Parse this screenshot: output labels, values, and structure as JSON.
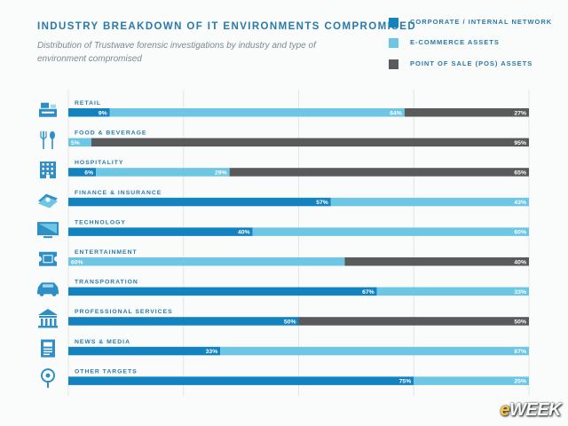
{
  "title": "INDUSTRY BREAKDOWN OF IT ENVIRONMENTS COMPROMISED",
  "subtitle": "Distribution of Trustwave forensic investigations by industry and type of environment compromised",
  "colors": {
    "corporate": "#1383c0",
    "ecommerce": "#6cc6e4",
    "pos": "#585a5c",
    "label": "#2a7aa8",
    "icon": "#2f8fc4",
    "grid": "#e1e6e9"
  },
  "legend": [
    {
      "name": "CORPORATE / INTERNAL NETWORK",
      "color_key": "corporate"
    },
    {
      "name": "E-COMMERCE ASSETS",
      "color_key": "ecommerce"
    },
    {
      "name": "POINT OF SALE (POS) ASSETS",
      "color_key": "pos"
    }
  ],
  "watermark": {
    "lead": "e",
    "rest": "WEEK"
  },
  "chart_data": {
    "type": "bar",
    "stacked": true,
    "orientation": "horizontal",
    "xlim": [
      0,
      100
    ],
    "grid": true,
    "legend_position": "top-right",
    "categories": [
      "RETAIL",
      "FOOD & BEVERAGE",
      "HOSPITALITY",
      "FINANCE & INSURANCE",
      "TECHNOLOGY",
      "ENTERTAINMENT",
      "TRANSPORATION",
      "PROFESSIONAL SERVICES",
      "NEWS & MEDIA",
      "OTHER TARGETS"
    ],
    "icons": [
      "cash-register-icon",
      "fork-spoon-icon",
      "hotel-icon",
      "money-icon",
      "monitor-icon",
      "ticket-icon",
      "car-icon",
      "bank-icon",
      "newspaper-icon",
      "map-pin-icon"
    ],
    "series": [
      {
        "name": "CORPORATE / INTERNAL NETWORK",
        "values": [
          9,
          0,
          6,
          57,
          40,
          0,
          67,
          50,
          33,
          75
        ],
        "labels": [
          "9%",
          "",
          "6%",
          "57%",
          "40%",
          "",
          "67%",
          "50%",
          "33%",
          "75%"
        ]
      },
      {
        "name": "E-COMMERCE ASSETS",
        "values": [
          64,
          5,
          29,
          43,
          60,
          60,
          33,
          0,
          67,
          25
        ],
        "labels": [
          "64%",
          "5%",
          "29%",
          "43%",
          "60%",
          "60%",
          "33%",
          "",
          "67%",
          "25%"
        ]
      },
      {
        "name": "POINT OF SALE (POS) ASSETS",
        "values": [
          27,
          95,
          65,
          0,
          0,
          40,
          0,
          50,
          0,
          0
        ],
        "labels": [
          "27%",
          "95%",
          "65%",
          "",
          "",
          "40%",
          "",
          "50%",
          "",
          ""
        ]
      }
    ]
  }
}
